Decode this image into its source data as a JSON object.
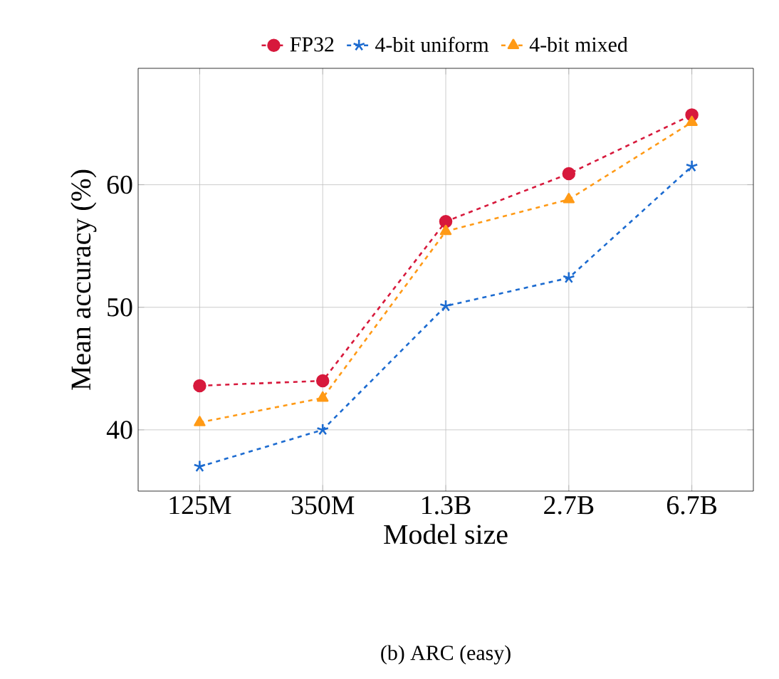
{
  "chart_data": {
    "type": "line",
    "xlabel": "Model size",
    "ylabel": "Mean accuracy (%)",
    "categories": [
      "125M",
      "350M",
      "1.3B",
      "2.7B",
      "6.7B"
    ],
    "series": [
      {
        "name": "FP32",
        "color": "#d7193c",
        "marker": "circle",
        "values": [
          43.6,
          44.0,
          57.0,
          60.9,
          65.7
        ]
      },
      {
        "name": "4-bit uniform",
        "color": "#1c6bd0",
        "marker": "cross",
        "values": [
          37.0,
          40.0,
          50.1,
          52.4,
          61.5
        ]
      },
      {
        "name": "4-bit mixed",
        "color": "#ff9a16",
        "marker": "triangle",
        "values": [
          40.6,
          42.6,
          56.2,
          58.8,
          65.1
        ]
      }
    ],
    "ylim": [
      35,
      69.5
    ],
    "yticks": [
      40,
      50,
      60
    ],
    "grid": true,
    "legend": "top",
    "line_style": "dashed",
    "annotations": [
      "(b) ARC (easy)"
    ]
  }
}
